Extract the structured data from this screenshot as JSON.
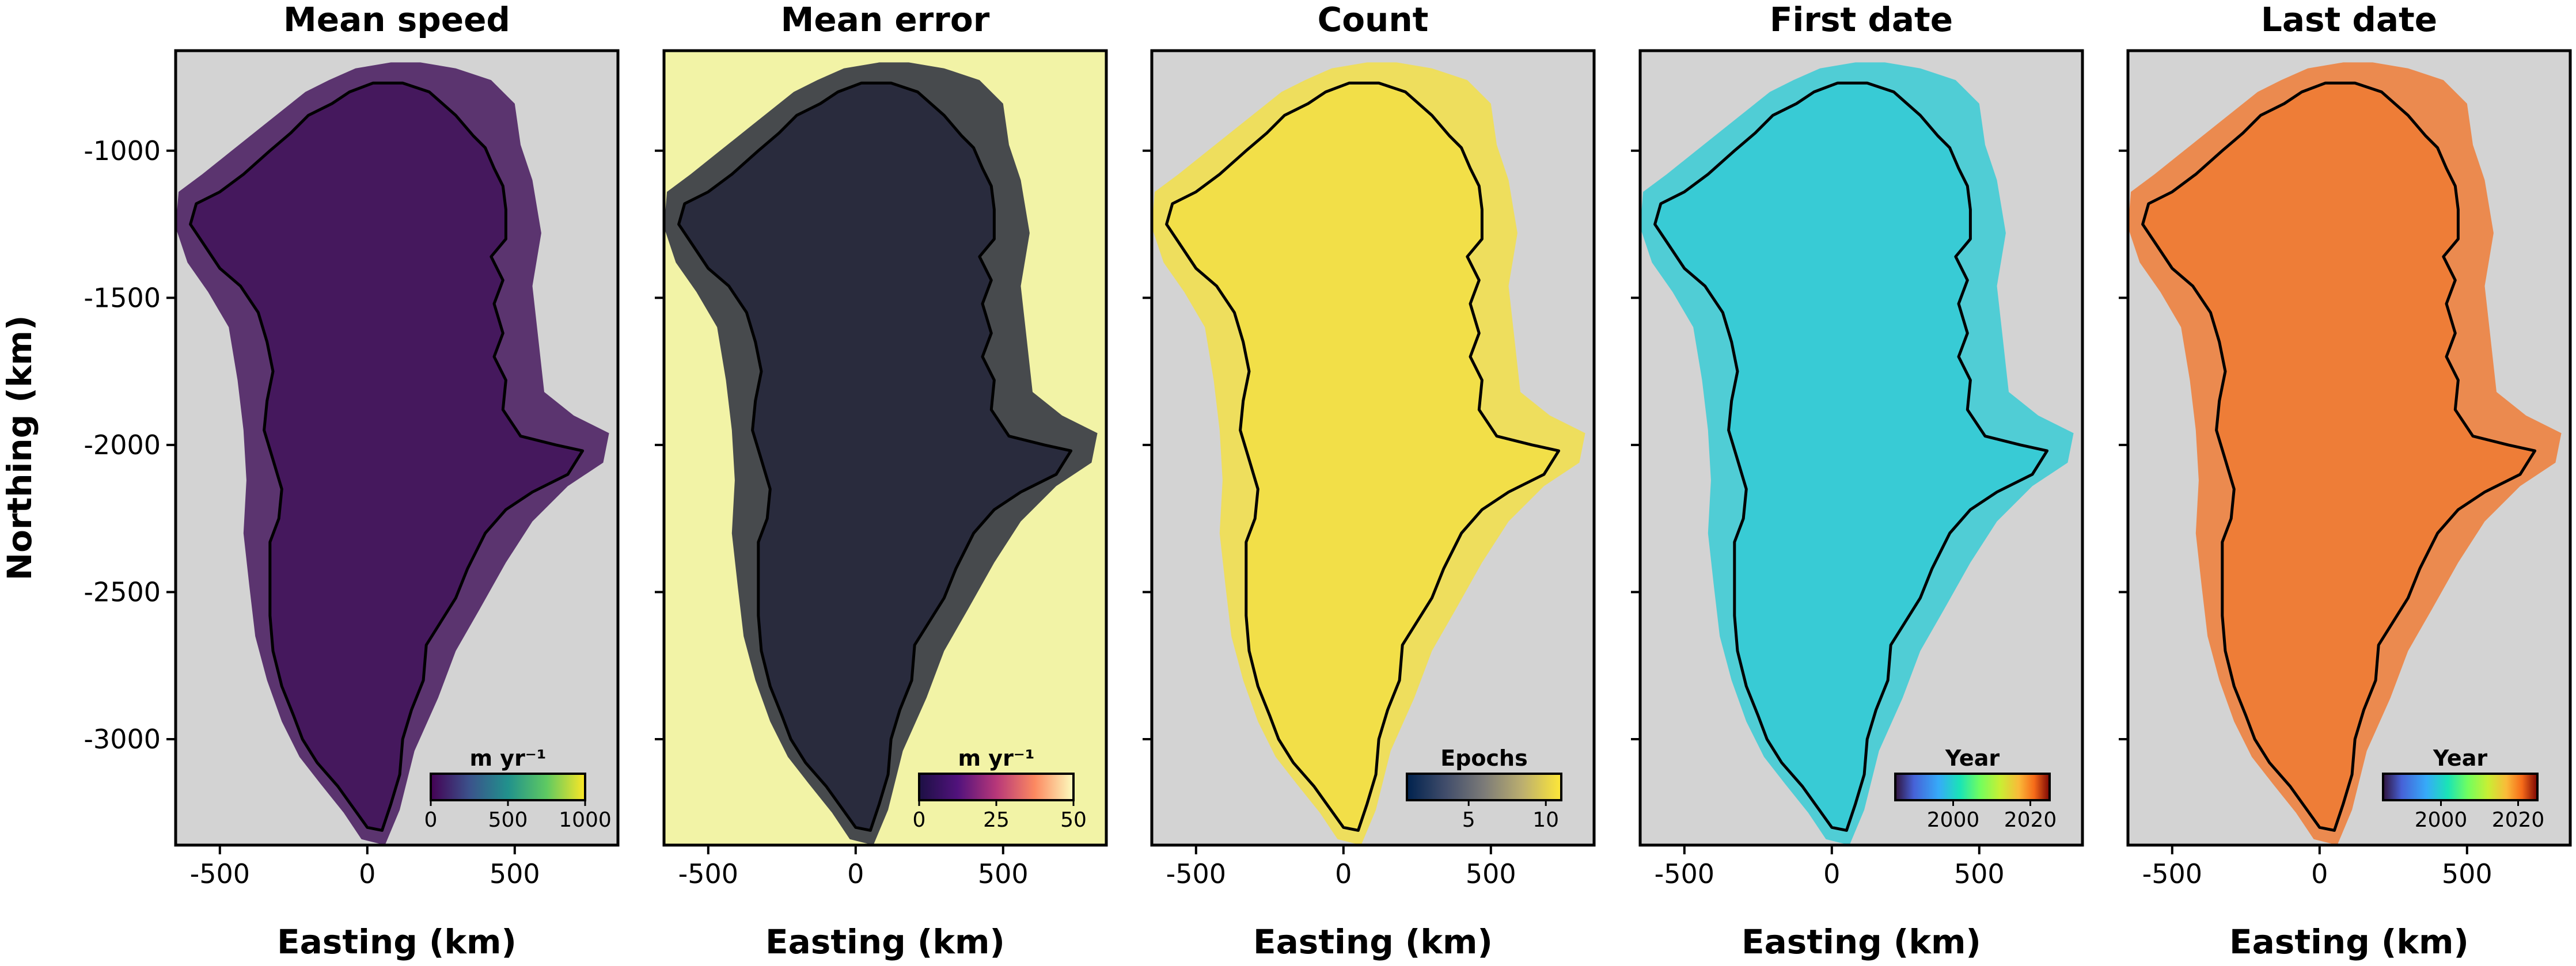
{
  "chart_data": [
    {
      "type": "heatmap",
      "title": "Mean speed",
      "xlabel": "Easting (km)",
      "ylabel": "Northing (km)",
      "xlim": [
        -650,
        850
      ],
      "ylim": [
        -3360,
        -660
      ],
      "xticks": [
        "-500",
        "0",
        "500"
      ],
      "yticks": [
        "-1000",
        "-1500",
        "-2000",
        "-2500",
        "-3000"
      ],
      "colorbar": {
        "label": "m yr⁻¹",
        "ticks": [
          "0",
          "500",
          "1000"
        ],
        "range": [
          0,
          1000
        ],
        "colormap": "viridis"
      },
      "background": "#d3d3d3",
      "fill": "#45185d"
    },
    {
      "type": "heatmap",
      "title": "Mean error",
      "xlabel": "Easting (km)",
      "xlim": [
        -650,
        850
      ],
      "ylim": [
        -3360,
        -660
      ],
      "xticks": [
        "-500",
        "0",
        "500"
      ],
      "colorbar": {
        "label": "m yr⁻¹",
        "ticks": [
          "0",
          "25",
          "50"
        ],
        "range": [
          0,
          50
        ],
        "colormap": "magma"
      },
      "background": "#f2f3a6",
      "fill": "#292b3d"
    },
    {
      "type": "heatmap",
      "title": "Count",
      "xlabel": "Easting (km)",
      "xlim": [
        -650,
        850
      ],
      "ylim": [
        -3360,
        -660
      ],
      "xticks": [
        "-500",
        "0",
        "500"
      ],
      "colorbar": {
        "label": "Epochs",
        "ticks": [
          "5",
          "10"
        ],
        "range": [
          1,
          11
        ],
        "colormap": "cividis"
      },
      "background": "#d3d3d3",
      "fill": "#f2df48"
    },
    {
      "type": "heatmap",
      "title": "First date",
      "xlabel": "Easting (km)",
      "xlim": [
        -650,
        850
      ],
      "ylim": [
        -3360,
        -660
      ],
      "xticks": [
        "-500",
        "0",
        "500"
      ],
      "colorbar": {
        "label": "Year",
        "ticks": [
          "2000",
          "2020"
        ],
        "range": [
          1985,
          2025
        ],
        "colormap": "turbo"
      },
      "background": "#d3d3d3",
      "fill": "#38cbd5"
    },
    {
      "type": "heatmap",
      "title": "Last date",
      "xlabel": "Easting (km)",
      "xlim": [
        -650,
        850
      ],
      "ylim": [
        -3360,
        -660
      ],
      "xticks": [
        "-500",
        "0",
        "500"
      ],
      "colorbar": {
        "label": "Year",
        "ticks": [
          "2000",
          "2020"
        ],
        "range": [
          1985,
          2025
        ],
        "colormap": "turbo"
      },
      "background": "#d3d3d3",
      "fill": "#ee7d37"
    }
  ]
}
